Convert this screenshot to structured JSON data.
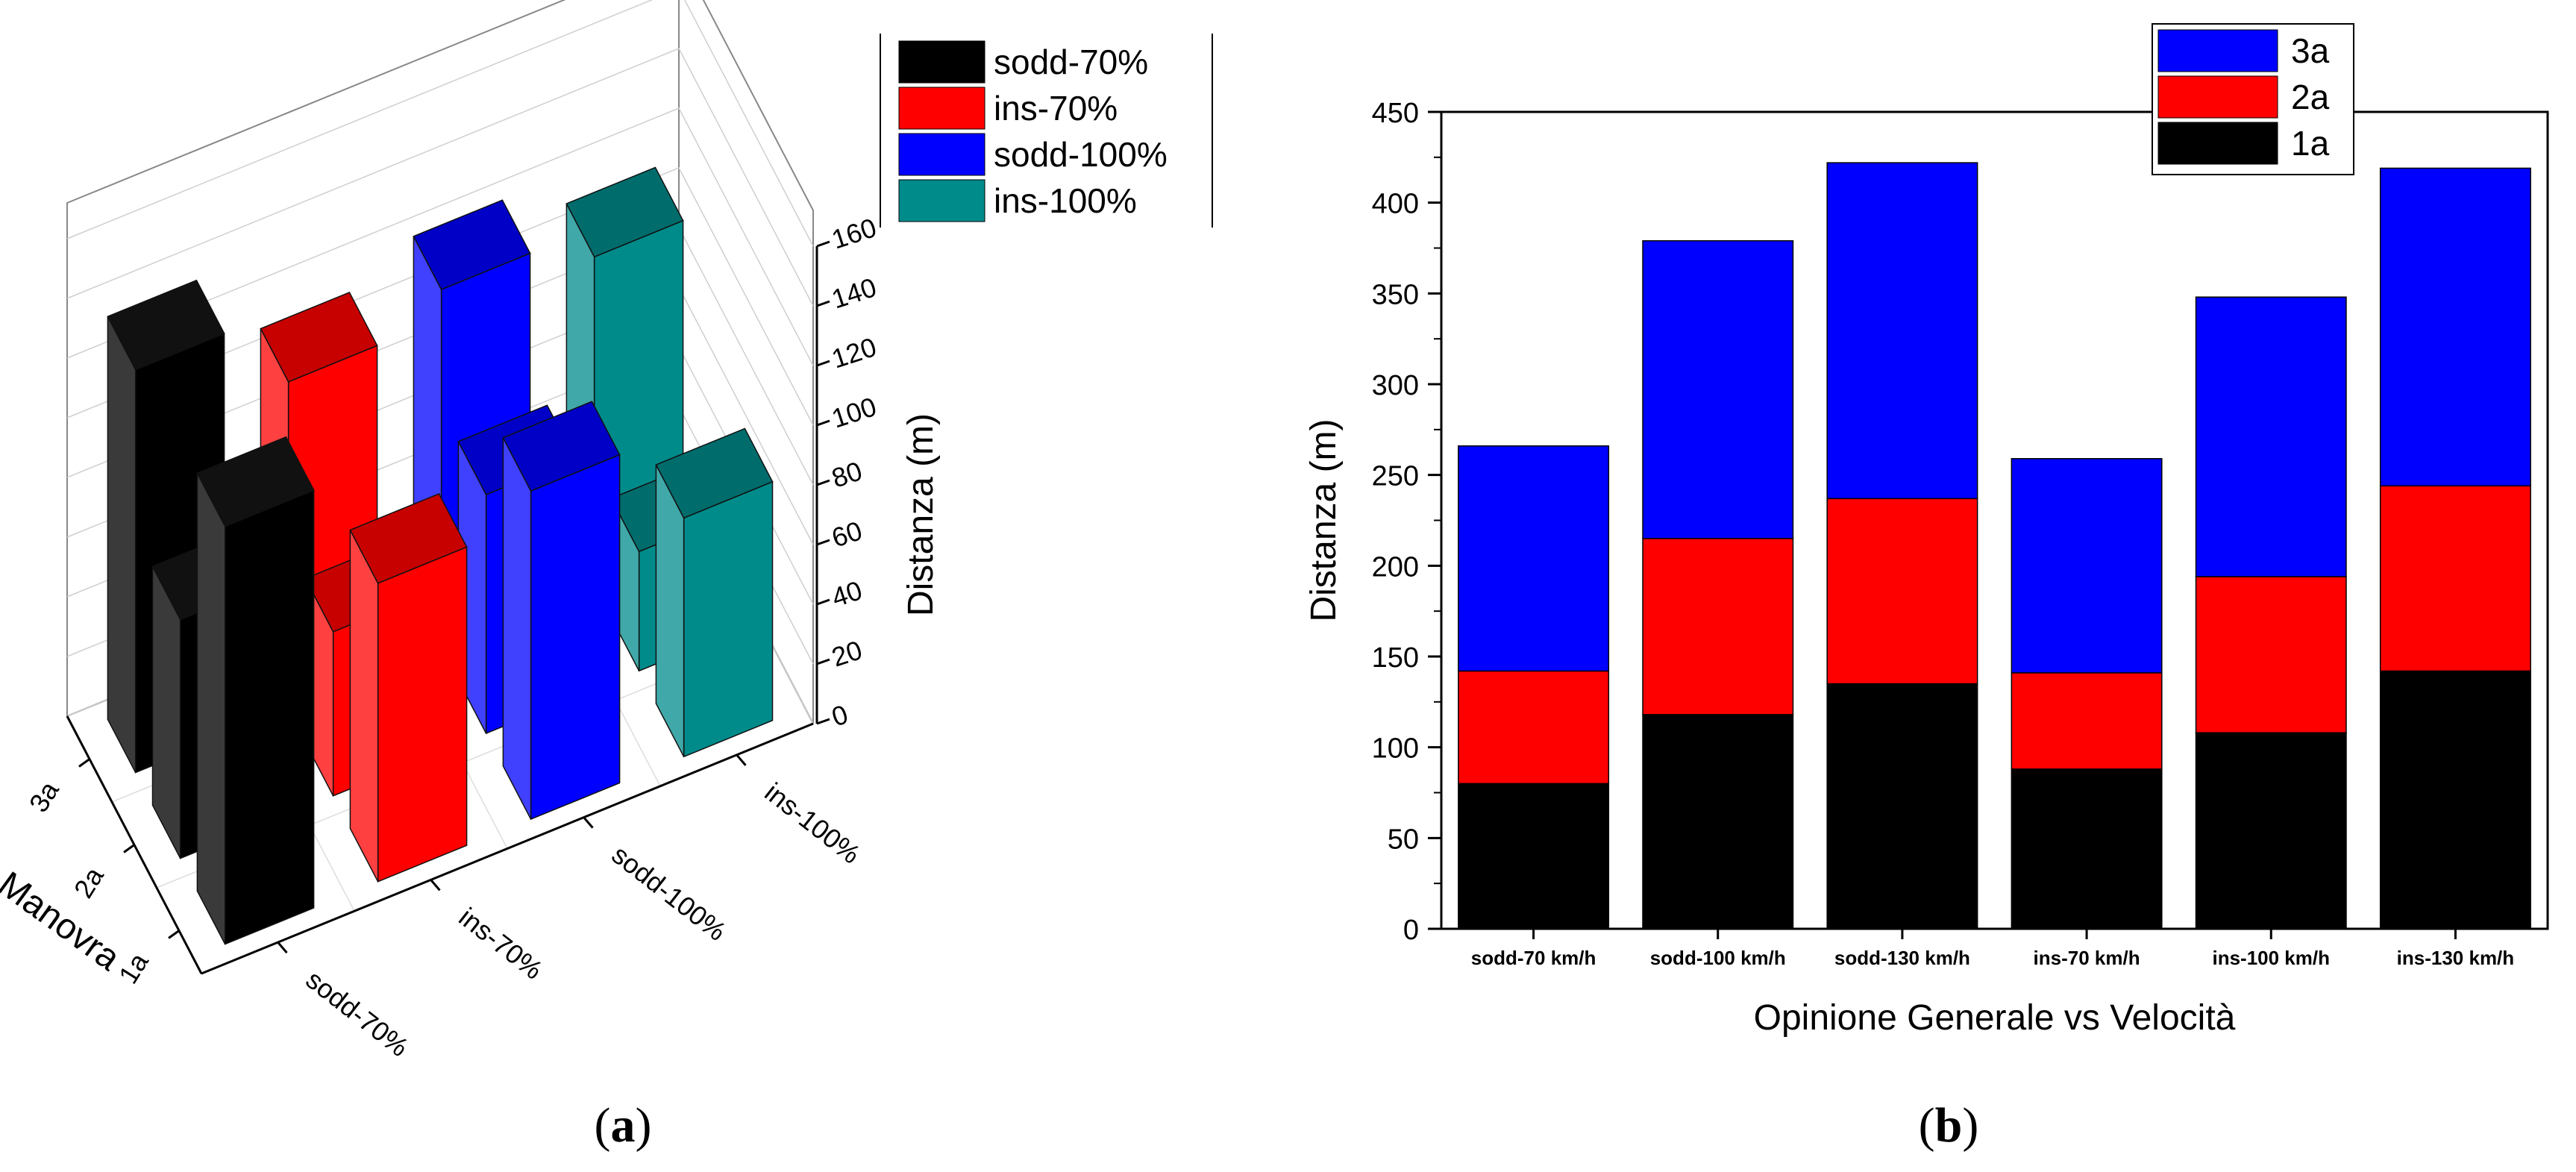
{
  "panels": {
    "a_label": "a",
    "b_label": "b"
  },
  "chart_data": [
    {
      "id": "a",
      "type": "bar3d",
      "title": "",
      "xlabel": "",
      "ylabel": "Manovra",
      "zlabel": "Distanza (m)",
      "x_categories": [
        "sodd-70%",
        "ins-70%",
        "sodd-100%",
        "ins-100%"
      ],
      "y_categories": [
        "1a",
        "2a",
        "3a"
      ],
      "zlim": [
        0,
        160
      ],
      "z_ticks": [
        0,
        20,
        40,
        60,
        80,
        100,
        120,
        140,
        160
      ],
      "series": [
        {
          "name": "sodd-70%",
          "values": [
            140,
            80,
            135
          ],
          "color": "#000000"
        },
        {
          "name": "ins-70%",
          "values": [
            100,
            55,
            110
          ],
          "color": "#ff0000"
        },
        {
          "name": "sodd-100%",
          "values": [
            110,
            80,
            120
          ],
          "color": "#0000ff"
        },
        {
          "name": "ins-100%",
          "values": [
            80,
            40,
            110
          ],
          "color": "#008b8b"
        }
      ],
      "legend": {
        "position": "top",
        "entries": [
          "sodd-70%",
          "ins-70%",
          "sodd-100%",
          "ins-100%"
        ]
      }
    },
    {
      "id": "b",
      "type": "stacked-bar",
      "title": "",
      "xlabel": "Opinione Generale vs Velocità",
      "ylabel": "Distanza (m)",
      "ylim": [
        0,
        450
      ],
      "y_ticks": [
        0,
        50,
        100,
        150,
        200,
        250,
        300,
        350,
        400,
        450
      ],
      "categories": [
        "sodd-70 km/h",
        "sodd-100 km/h",
        "sodd-130 km/h",
        "ins-70 km/h",
        "ins-100 km/h",
        "ins-130 km/h"
      ],
      "series": [
        {
          "name": "1a",
          "values": [
            80,
            118,
            135,
            88,
            108,
            142
          ],
          "color": "#000000"
        },
        {
          "name": "2a",
          "values": [
            62,
            97,
            102,
            53,
            86,
            102
          ],
          "color": "#ff0000"
        },
        {
          "name": "3a",
          "values": [
            124,
            164,
            185,
            118,
            154,
            175
          ],
          "color": "#0000ff"
        }
      ],
      "legend": {
        "position": "top-right",
        "entries": [
          "3a",
          "2a",
          "1a"
        ]
      }
    }
  ]
}
